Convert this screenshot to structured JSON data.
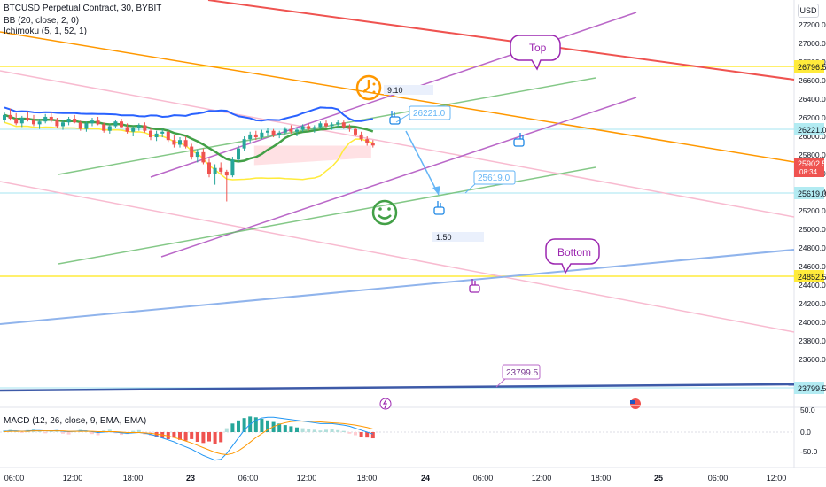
{
  "header": {
    "symbol_line": "BTCUSD Perpetual Contract, 30, BYBIT",
    "bb_line": "BB (20, close, 2, 0)",
    "ichimoku_line": "Ichimoku (5, 1, 52, 1)",
    "currency_button": "USD"
  },
  "macd_legend": "MACD (12, 26, close, 9, EMA, EMA)",
  "colors": {
    "up": "#26a69a",
    "down": "#ef5350",
    "bb_band": "#2962ff",
    "bb_basis": "#ffeb3b",
    "ichimoku": "#43a047",
    "macd": "#2196f3",
    "signal": "#ff9800"
  },
  "chart_data": [
    {
      "type": "line",
      "name": "price",
      "y_ticks": [
        23600,
        23800,
        24000,
        24200,
        24400,
        24600,
        24800,
        25000,
        25200,
        25400,
        25600,
        25800,
        26000,
        26200,
        26400,
        26600,
        26800,
        27000,
        27200
      ],
      "ylim": [
        23600,
        27400
      ],
      "x_ticks": [
        "06:00",
        "12:00",
        "18:00",
        "23",
        "06:00",
        "12:00",
        "18:00",
        "24",
        "06:00",
        "12:00",
        "18:00",
        "25",
        "06:00",
        "12:00"
      ],
      "price_labels": {
        "level_top": "26796.5",
        "level_resistance": "26221.0",
        "current": "25902.5",
        "countdown": "08:34",
        "level_support": "25619.0",
        "level_low": "24852.5",
        "level_bottom_line": "23799.5"
      },
      "annotations": {
        "top_bubble": "Top",
        "bottom_bubble": "Bottom",
        "callout_resistance": "26221.0",
        "callout_support": "25619.0",
        "callout_bottom": "23799.5",
        "time_box_1": "9:10",
        "time_box_2": "1:50"
      },
      "candles": [
        [
          26180,
          26260,
          26150,
          26230
        ],
        [
          26230,
          26300,
          26170,
          26190
        ],
        [
          26190,
          26250,
          26120,
          26140
        ],
        [
          26140,
          26220,
          26100,
          26200
        ],
        [
          26200,
          26270,
          26160,
          26180
        ],
        [
          26180,
          26230,
          26110,
          26130
        ],
        [
          26130,
          26190,
          26080,
          26160
        ],
        [
          26160,
          26240,
          26140,
          26210
        ],
        [
          26210,
          26260,
          26150,
          26170
        ],
        [
          26170,
          26200,
          26090,
          26110
        ],
        [
          26110,
          26180,
          26070,
          26150
        ],
        [
          26150,
          26210,
          26120,
          26190
        ],
        [
          26190,
          26230,
          26140,
          26150
        ],
        [
          26150,
          26170,
          26060,
          26080
        ],
        [
          26080,
          26160,
          26050,
          26140
        ],
        [
          26140,
          26200,
          26110,
          26170
        ],
        [
          26170,
          26210,
          26120,
          26130
        ],
        [
          26130,
          26150,
          26040,
          26060
        ],
        [
          26060,
          26130,
          26030,
          26110
        ],
        [
          26110,
          26180,
          26090,
          26160
        ],
        [
          26160,
          26190,
          26090,
          26100
        ],
        [
          26100,
          26140,
          26030,
          26050
        ],
        [
          26050,
          26110,
          26000,
          26090
        ],
        [
          26090,
          26140,
          26060,
          26120
        ],
        [
          26120,
          26150,
          26040,
          26060
        ],
        [
          26060,
          26090,
          25960,
          25990
        ],
        [
          25990,
          26060,
          25950,
          26030
        ],
        [
          26030,
          26080,
          25990,
          26050
        ],
        [
          26050,
          26070,
          25940,
          25960
        ],
        [
          25960,
          26010,
          25880,
          25910
        ],
        [
          25910,
          25990,
          25880,
          25960
        ],
        [
          25960,
          26000,
          25870,
          25890
        ],
        [
          25890,
          25920,
          25750,
          25780
        ],
        [
          25780,
          25860,
          25720,
          25830
        ],
        [
          25830,
          25870,
          25700,
          25720
        ],
        [
          25720,
          25760,
          25560,
          25600
        ],
        [
          25600,
          25700,
          25480,
          25660
        ],
        [
          25660,
          25720,
          25590,
          25620
        ],
        [
          25620,
          25640,
          25300,
          25580
        ],
        [
          25580,
          25780,
          25560,
          25750
        ],
        [
          25750,
          25900,
          25720,
          25870
        ],
        [
          25870,
          26000,
          25840,
          25970
        ],
        [
          25970,
          26050,
          25930,
          26020
        ],
        [
          26020,
          26060,
          25960,
          25990
        ],
        [
          25990,
          26070,
          25970,
          26040
        ],
        [
          26040,
          26090,
          26000,
          26060
        ],
        [
          26060,
          26080,
          25990,
          26010
        ],
        [
          26010,
          26060,
          25980,
          26040
        ],
        [
          26040,
          26100,
          26020,
          26080
        ],
        [
          26080,
          26120,
          26030,
          26050
        ],
        [
          26050,
          26090,
          26000,
          26070
        ],
        [
          26070,
          26130,
          26050,
          26110
        ],
        [
          26110,
          26140,
          26060,
          26080
        ],
        [
          26080,
          26120,
          26040,
          26100
        ],
        [
          26100,
          26160,
          26080,
          26140
        ],
        [
          26140,
          26170,
          26090,
          26110
        ],
        [
          26110,
          26150,
          26070,
          26130
        ],
        [
          26130,
          26180,
          26100,
          26150
        ],
        [
          26150,
          26170,
          26080,
          26100
        ],
        [
          26100,
          26130,
          26050,
          26080
        ],
        [
          26080,
          26100,
          26000,
          26020
        ],
        [
          26020,
          26050,
          25950,
          25970
        ],
        [
          25970,
          26000,
          25900,
          25930
        ],
        [
          25930,
          25960,
          25880,
          25902
        ]
      ],
      "macd_hist": [
        4,
        6,
        3,
        -2,
        5,
        7,
        4,
        -3,
        2,
        5,
        -4,
        -6,
        3,
        6,
        2,
        -5,
        -8,
        4,
        6,
        -3,
        -7,
        -5,
        3,
        5,
        -6,
        -9,
        -12,
        -15,
        -18,
        -14,
        -20,
        -22,
        -18,
        -25,
        -28,
        -24,
        -30,
        -26,
        10,
        22,
        30,
        36,
        40,
        38,
        34,
        30,
        26,
        22,
        18,
        15,
        12,
        10,
        8,
        6,
        4,
        6,
        8,
        5,
        3,
        -4,
        -8,
        -12,
        -14,
        -16
      ],
      "macd_line": [
        2,
        3,
        3,
        2,
        3,
        4,
        4,
        3,
        3,
        4,
        2,
        1,
        2,
        3,
        3,
        1,
        -1,
        0,
        1,
        0,
        -2,
        -3,
        -2,
        -1,
        -3,
        -6,
        -10,
        -15,
        -20,
        -25,
        -32,
        -38,
        -44,
        -52,
        -60,
        -66,
        -72,
        -70,
        -55,
        -35,
        -15,
        5,
        20,
        30,
        36,
        38,
        38,
        36,
        34,
        32,
        30,
        28,
        26,
        24,
        22,
        22,
        22,
        20,
        18,
        15,
        10,
        5,
        0,
        -5
      ],
      "signal_line": [
        1,
        2,
        2,
        2,
        2,
        3,
        3,
        3,
        3,
        3,
        3,
        2,
        2,
        2,
        2,
        2,
        1,
        1,
        1,
        1,
        0,
        -1,
        -1,
        -1,
        -2,
        -3,
        -5,
        -7,
        -10,
        -14,
        -18,
        -23,
        -28,
        -34,
        -40,
        -46,
        -52,
        -56,
        -58,
        -55,
        -48,
        -38,
        -26,
        -14,
        -4,
        6,
        14,
        20,
        24,
        27,
        28,
        28,
        28,
        27,
        26,
        25,
        24,
        23,
        22,
        20,
        18,
        15,
        12,
        8
      ],
      "macd_ticks": [
        "50.0",
        "0.0",
        "-50.0"
      ]
    }
  ]
}
